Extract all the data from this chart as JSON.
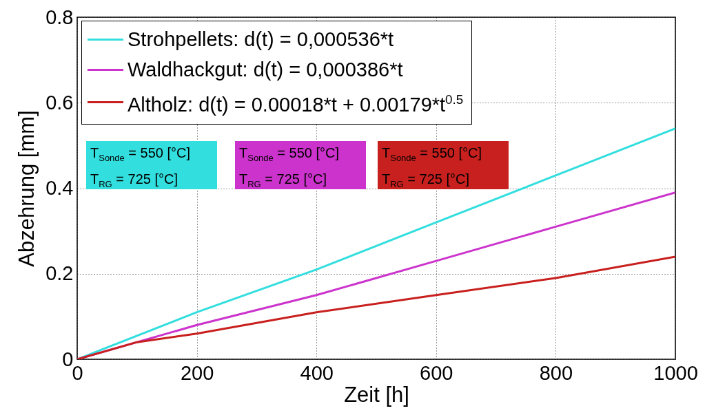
{
  "chart_data": {
    "type": "line",
    "xlabel": "Zeit [h]",
    "ylabel": "Abzehrung [mm]",
    "xlim": [
      0,
      1000
    ],
    "xticks": [
      0,
      200,
      400,
      600,
      800,
      1000
    ],
    "ylim": [
      0,
      0.8
    ],
    "yticks": [
      0,
      0.2,
      0.4,
      0.6,
      0.8
    ],
    "grid": true,
    "legend": "top left",
    "line_style": "solid",
    "series": [
      {
        "name": "Strohpellets: d(t) = 0,000536*t",
        "color": "#33dede",
        "x": [
          0,
          200,
          400,
          600,
          800,
          1000
        ],
        "values": [
          0,
          0.11,
          0.21,
          0.32,
          0.43,
          0.54
        ]
      },
      {
        "name": "Waldhackgut: d(t) = 0,000386*t",
        "color": "#cc33cc",
        "x": [
          0,
          200,
          400,
          600,
          800,
          1000
        ],
        "values": [
          0,
          0.08,
          0.15,
          0.23,
          0.31,
          0.39
        ]
      },
      {
        "name": "Altholz: d(t) = 0.00018*t + 0.00179*t$^{0.5}$",
        "color": "#c8201e",
        "x": [
          0,
          50,
          100,
          200,
          400,
          600,
          800,
          1000
        ],
        "values": [
          0,
          0.02,
          0.04,
          0.06,
          0.11,
          0.15,
          0.19,
          0.24
        ]
      }
    ],
    "annotations": [
      "T$_{Sonde}$ = 550 [°C]",
      "T$_{RG}$ = 725 [°C]",
      "T$_{Sonde}$ = 550 [°C]",
      "T$_{RG}$ = 725 [°C]",
      "T$_{Sonde}$ = 550 [°C]",
      "T$_{RG}$ = 725 [°C]"
    ]
  }
}
